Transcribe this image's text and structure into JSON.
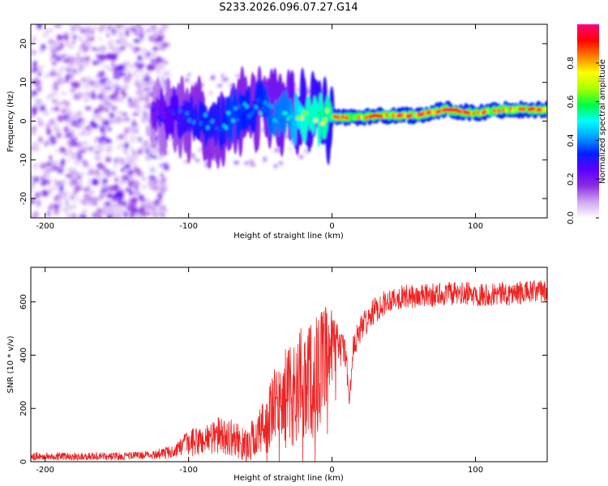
{
  "title": "S233.2026.096.07.27.G14",
  "chart_data": [
    {
      "type": "heatmap",
      "xlabel": "Height of straight line (km)",
      "ylabel": "Frequency (Hz)",
      "xlim": [
        -210,
        150
      ],
      "ylim": [
        -25,
        25
      ],
      "xticks": [
        -200,
        -100,
        0,
        100
      ],
      "yticks": [
        -20,
        -10,
        0,
        10,
        20
      ],
      "colorbar": {
        "label": "Normalized spectral amplitude",
        "range": [
          0,
          1
        ],
        "ticks": [
          0.0,
          0.2,
          0.4,
          0.6,
          0.8
        ],
        "colors": [
          "#ffffff",
          "#cfa6f2",
          "#8a2be2",
          "#5a00ff",
          "#0020ff",
          "#00a0ff",
          "#00ffff",
          "#00ff40",
          "#aaff00",
          "#ffff00",
          "#ff8000",
          "#ff0000",
          "#ff007f"
        ]
      },
      "signal_ridge": {
        "x": [
          -125,
          -110,
          -100,
          -90,
          -80,
          -70,
          -60,
          -50,
          -40,
          -30,
          -20,
          -10,
          0,
          10,
          20,
          40,
          60,
          80,
          100,
          120,
          150
        ],
        "freq_hz": [
          1,
          2,
          1,
          0,
          -1,
          1,
          3,
          4,
          2,
          1,
          2,
          1,
          1,
          1,
          1,
          1.5,
          1.5,
          3,
          2,
          3,
          3
        ],
        "amplitude": [
          0.3,
          0.4,
          0.45,
          0.5,
          0.45,
          0.55,
          0.5,
          0.5,
          0.6,
          0.6,
          0.8,
          0.8,
          0.85,
          0.9,
          0.9,
          0.95,
          0.95,
          0.95,
          0.9,
          0.95,
          0.9
        ]
      },
      "noise_region": {
        "x_range": [
          -210,
          -125
        ],
        "freq_range": [
          -25,
          25
        ]
      }
    },
    {
      "type": "line",
      "xlabel": "Height of straight line (km)",
      "ylabel": "SNR (10 * v/v)",
      "xlim": [
        -210,
        150
      ],
      "ylim": [
        0,
        730
      ],
      "xticks": [
        -200,
        -100,
        0,
        100
      ],
      "yticks": [
        0,
        200,
        400,
        600
      ],
      "series": [
        {
          "name": "SNR",
          "color": "#ee2222",
          "x": [
            -210,
            -180,
            -150,
            -130,
            -120,
            -110,
            -100,
            -90,
            -80,
            -70,
            -60,
            -50,
            -40,
            -30,
            -20,
            -15,
            -10,
            -5,
            0,
            5,
            10,
            12,
            15,
            20,
            30,
            40,
            50,
            60,
            80,
            100,
            120,
            150
          ],
          "mean": [
            20,
            20,
            20,
            25,
            30,
            40,
            70,
            80,
            100,
            90,
            60,
            110,
            200,
            250,
            300,
            320,
            330,
            380,
            420,
            440,
            400,
            210,
            430,
            500,
            570,
            610,
            620,
            620,
            630,
            630,
            630,
            640
          ],
          "spread": [
            15,
            15,
            15,
            15,
            20,
            25,
            50,
            60,
            70,
            70,
            60,
            100,
            150,
            200,
            220,
            230,
            230,
            200,
            150,
            80,
            60,
            40,
            60,
            50,
            50,
            45,
            45,
            45,
            45,
            45,
            45,
            45
          ]
        }
      ]
    }
  ]
}
